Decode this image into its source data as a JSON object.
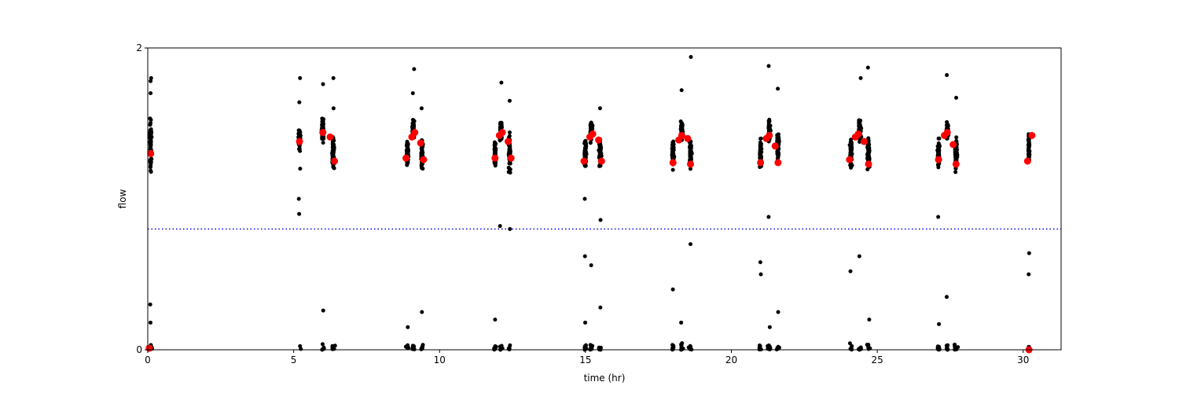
{
  "chart_data": {
    "type": "scatter",
    "xlabel": "time (hr)",
    "ylabel": "flow",
    "xlim": [
      0,
      31.3
    ],
    "ylim": [
      0,
      2
    ],
    "xticks": [
      0,
      5,
      10,
      15,
      20,
      25,
      30
    ],
    "yticks": [
      0,
      2
    ],
    "grid": false,
    "threshold": {
      "y": 0.8,
      "color": "#0000ff",
      "style": "dotted"
    },
    "colors": {
      "raw": "#000000",
      "summary": "#ff0000"
    },
    "clusters": [
      {
        "x": 0.1,
        "spread": 0.05,
        "center": 1.35,
        "range": [
          1.1,
          1.6
        ],
        "low_count": 8,
        "outliers": [
          1.8,
          1.78,
          1.7,
          0.3,
          0.18
        ]
      },
      {
        "x": 5.2,
        "spread": 0.05,
        "center": 1.4,
        "range": [
          1.3,
          1.5
        ],
        "low_count": 2,
        "outliers": [
          1.8,
          1.64,
          1.2,
          1.0,
          0.9
        ]
      },
      {
        "x": 6.0,
        "spread": 0.06,
        "center": 1.45,
        "range": [
          1.35,
          1.55
        ],
        "low_count": 6,
        "outliers": [
          1.76,
          0.26
        ]
      },
      {
        "x": 6.35,
        "spread": 0.06,
        "center": 1.3,
        "range": [
          1.15,
          1.45
        ],
        "low_count": 8,
        "outliers": [
          1.8,
          1.6
        ]
      },
      {
        "x": 8.9,
        "spread": 0.05,
        "center": 1.3,
        "range": [
          1.15,
          1.4
        ],
        "low_count": 8,
        "outliers": [
          0.15
        ]
      },
      {
        "x": 9.1,
        "spread": 0.06,
        "center": 1.45,
        "range": [
          1.35,
          1.55
        ],
        "low_count": 8,
        "outliers": [
          1.86,
          1.7
        ]
      },
      {
        "x": 9.4,
        "spread": 0.06,
        "center": 1.3,
        "range": [
          1.15,
          1.4
        ],
        "low_count": 8,
        "outliers": [
          1.6,
          0.25
        ]
      },
      {
        "x": 11.9,
        "spread": 0.05,
        "center": 1.3,
        "range": [
          1.15,
          1.4
        ],
        "low_count": 8,
        "outliers": [
          0.2
        ]
      },
      {
        "x": 12.1,
        "spread": 0.06,
        "center": 1.45,
        "range": [
          1.35,
          1.55
        ],
        "low_count": 8,
        "outliers": [
          1.77,
          0.82
        ]
      },
      {
        "x": 12.4,
        "spread": 0.06,
        "center": 1.3,
        "range": [
          1.15,
          1.45
        ],
        "low_count": 8,
        "outliers": [
          1.65,
          0.8
        ]
      },
      {
        "x": 15.0,
        "spread": 0.05,
        "center": 1.3,
        "range": [
          1.15,
          1.4
        ],
        "low_count": 8,
        "outliers": [
          1.0,
          0.62,
          0.18
        ]
      },
      {
        "x": 15.2,
        "spread": 0.06,
        "center": 1.45,
        "range": [
          1.35,
          1.55
        ],
        "low_count": 8,
        "outliers": [
          0.56
        ]
      },
      {
        "x": 15.5,
        "spread": 0.06,
        "center": 1.3,
        "range": [
          1.15,
          1.45
        ],
        "low_count": 8,
        "outliers": [
          1.6,
          0.86,
          0.28
        ]
      },
      {
        "x": 18.0,
        "spread": 0.05,
        "center": 1.3,
        "range": [
          1.15,
          1.4
        ],
        "low_count": 8,
        "outliers": [
          0.4
        ]
      },
      {
        "x": 18.3,
        "spread": 0.06,
        "center": 1.45,
        "range": [
          1.35,
          1.55
        ],
        "low_count": 8,
        "outliers": [
          1.72,
          0.18
        ]
      },
      {
        "x": 18.6,
        "spread": 0.06,
        "center": 1.3,
        "range": [
          1.15,
          1.45
        ],
        "low_count": 8,
        "outliers": [
          1.94,
          0.7
        ]
      },
      {
        "x": 21.0,
        "spread": 0.05,
        "center": 1.3,
        "range": [
          1.1,
          1.4
        ],
        "low_count": 8,
        "outliers": [
          0.58,
          0.5
        ]
      },
      {
        "x": 21.3,
        "spread": 0.06,
        "center": 1.45,
        "range": [
          1.35,
          1.55
        ],
        "low_count": 8,
        "outliers": [
          1.88,
          0.88,
          0.15
        ]
      },
      {
        "x": 21.6,
        "spread": 0.06,
        "center": 1.35,
        "range": [
          1.2,
          1.45
        ],
        "low_count": 8,
        "outliers": [
          1.73,
          0.25
        ]
      },
      {
        "x": 24.1,
        "spread": 0.05,
        "center": 1.3,
        "range": [
          1.15,
          1.4
        ],
        "low_count": 8,
        "outliers": [
          0.52
        ]
      },
      {
        "x": 24.4,
        "spread": 0.06,
        "center": 1.45,
        "range": [
          1.35,
          1.55
        ],
        "low_count": 8,
        "outliers": [
          1.8,
          0.62
        ]
      },
      {
        "x": 24.7,
        "spread": 0.06,
        "center": 1.3,
        "range": [
          1.15,
          1.45
        ],
        "low_count": 8,
        "outliers": [
          1.87,
          0.2
        ]
      },
      {
        "x": 27.1,
        "spread": 0.05,
        "center": 1.3,
        "range": [
          1.15,
          1.4
        ],
        "low_count": 8,
        "outliers": [
          0.88,
          0.17
        ]
      },
      {
        "x": 27.4,
        "spread": 0.06,
        "center": 1.45,
        "range": [
          1.35,
          1.55
        ],
        "low_count": 8,
        "outliers": [
          1.82,
          0.35
        ]
      },
      {
        "x": 27.7,
        "spread": 0.06,
        "center": 1.3,
        "range": [
          1.15,
          1.45
        ],
        "low_count": 8,
        "outliers": [
          1.67
        ]
      },
      {
        "x": 30.2,
        "spread": 0.04,
        "center": 1.35,
        "range": [
          1.2,
          1.5
        ],
        "low_count": 6,
        "outliers": [
          0.64,
          0.5
        ]
      }
    ],
    "summary_points": [
      {
        "x": 0.1,
        "y": 1.3
      },
      {
        "x": 0.05,
        "y": 0.01
      },
      {
        "x": 5.2,
        "y": 1.38
      },
      {
        "x": 6.0,
        "y": 1.44
      },
      {
        "x": 6.25,
        "y": 1.41
      },
      {
        "x": 6.4,
        "y": 1.25
      },
      {
        "x": 8.85,
        "y": 1.27
      },
      {
        "x": 9.05,
        "y": 1.41
      },
      {
        "x": 9.15,
        "y": 1.44
      },
      {
        "x": 9.35,
        "y": 1.37
      },
      {
        "x": 9.45,
        "y": 1.26
      },
      {
        "x": 11.9,
        "y": 1.27
      },
      {
        "x": 12.05,
        "y": 1.42
      },
      {
        "x": 12.15,
        "y": 1.44
      },
      {
        "x": 12.35,
        "y": 1.38
      },
      {
        "x": 12.45,
        "y": 1.27
      },
      {
        "x": 14.95,
        "y": 1.25
      },
      {
        "x": 15.15,
        "y": 1.41
      },
      {
        "x": 15.25,
        "y": 1.43
      },
      {
        "x": 15.45,
        "y": 1.39
      },
      {
        "x": 15.55,
        "y": 1.25
      },
      {
        "x": 18.0,
        "y": 1.24
      },
      {
        "x": 18.2,
        "y": 1.39
      },
      {
        "x": 18.3,
        "y": 1.42
      },
      {
        "x": 18.5,
        "y": 1.4
      },
      {
        "x": 18.6,
        "y": 1.23
      },
      {
        "x": 21.0,
        "y": 1.24
      },
      {
        "x": 21.2,
        "y": 1.4
      },
      {
        "x": 21.3,
        "y": 1.42
      },
      {
        "x": 21.5,
        "y": 1.35
      },
      {
        "x": 21.6,
        "y": 1.24
      },
      {
        "x": 24.05,
        "y": 1.26
      },
      {
        "x": 24.25,
        "y": 1.41
      },
      {
        "x": 24.35,
        "y": 1.43
      },
      {
        "x": 24.55,
        "y": 1.38
      },
      {
        "x": 24.7,
        "y": 1.23
      },
      {
        "x": 27.1,
        "y": 1.26
      },
      {
        "x": 27.3,
        "y": 1.42
      },
      {
        "x": 27.4,
        "y": 1.44
      },
      {
        "x": 27.6,
        "y": 1.36
      },
      {
        "x": 27.7,
        "y": 1.23
      },
      {
        "x": 30.15,
        "y": 1.25
      },
      {
        "x": 30.3,
        "y": 1.42
      },
      {
        "x": 30.2,
        "y": 0.0
      }
    ]
  }
}
